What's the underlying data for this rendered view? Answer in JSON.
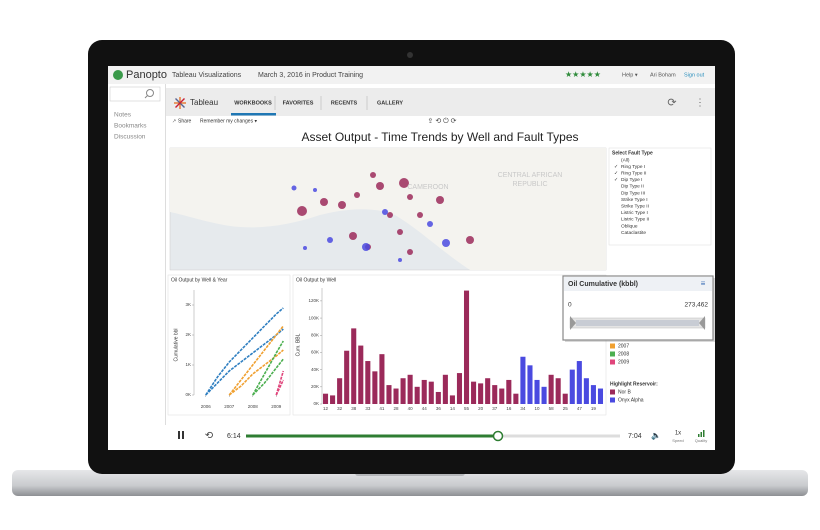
{
  "panopto": {
    "logo": "Panopto",
    "title": "Tableau Visualizations",
    "subtitle": "March 3, 2016 in Product Training",
    "rating": "★★★★★",
    "help": "Help ▾",
    "user": "Ari Boham",
    "signout": "Sign out"
  },
  "sidebar": {
    "items": [
      "Notes",
      "Bookmarks",
      "Discussion"
    ]
  },
  "tableau": {
    "logo": "Tableau",
    "tabs": [
      "WORKBOOKS",
      "FAVORITES",
      "RECENTS",
      "GALLERY"
    ],
    "toolbar": [
      "Share",
      "Remember my changes ▾"
    ]
  },
  "dashboard": {
    "title": "Asset Output - Time Trends by Well and Fault Types",
    "map": {
      "labels": [
        "CENTRAL AFRICAN",
        "REPUBLIC",
        "CAMEROON"
      ]
    },
    "filter": {
      "title": "Select Fault Type",
      "options": [
        {
          "label": "(All)",
          "checked": false
        },
        {
          "label": "Ring Type I",
          "checked": true
        },
        {
          "label": "Ring Type II",
          "checked": true
        },
        {
          "label": "Dip Type I",
          "checked": true
        },
        {
          "label": "Dip Type II",
          "checked": false
        },
        {
          "label": "Dip Type III",
          "checked": false
        },
        {
          "label": "Strike Type I",
          "checked": false
        },
        {
          "label": "Strike Type II",
          "checked": false
        },
        {
          "label": "Listric Type I",
          "checked": false
        },
        {
          "label": "Listric Type II",
          "checked": false
        },
        {
          "label": "Oblique",
          "checked": false
        },
        {
          "label": "Cataclastite",
          "checked": false
        }
      ]
    },
    "line_chart": {
      "title": "Oil Output by Well & Year",
      "y_label": "Cumulative bbl",
      "x": [
        2006,
        2006.5,
        2007,
        2007.5,
        2008,
        2008.5,
        2009,
        2009.3
      ],
      "xlim": [
        2005.5,
        2009.5
      ],
      "xticks": [
        2006,
        2007,
        2008,
        2009
      ],
      "ylim": [
        0,
        3500
      ],
      "yticks": [
        {
          "value": 0,
          "label": "0K"
        },
        {
          "value": 1000,
          "label": "1K"
        },
        {
          "value": 2000,
          "label": "2K"
        },
        {
          "value": 3000,
          "label": "3K"
        }
      ],
      "series": [
        {
          "name": "2006",
          "color": "#2f7fc1",
          "lines": [
            [
              0,
              600,
              1100,
              1500,
              1900,
              2300,
              2700,
              2900
            ],
            [
              0,
              400,
              800,
              1100,
              1400,
              1700,
              2000,
              2200
            ]
          ]
        },
        {
          "name": "2007",
          "color": "#f0a030",
          "lines": [
            [
              null,
              null,
              0,
              500,
              1000,
              1500,
              2000,
              2300
            ],
            [
              null,
              null,
              0,
              300,
              700,
              1000,
              1300,
              1500
            ]
          ]
        },
        {
          "name": "2008",
          "color": "#4caf50",
          "lines": [
            [
              null,
              null,
              null,
              null,
              0,
              700,
              1400,
              1800
            ],
            [
              null,
              null,
              null,
              null,
              0,
              400,
              900,
              1200
            ]
          ]
        },
        {
          "name": "2009",
          "color": "#e0457b",
          "lines": [
            [
              null,
              null,
              null,
              null,
              null,
              null,
              0,
              800
            ],
            [
              null,
              null,
              null,
              null,
              null,
              null,
              0,
              500
            ]
          ]
        }
      ]
    },
    "bar_chart": {
      "title": "Oil Output by Well",
      "y_label": "Cum. BBL",
      "categories": [
        "12",
        null,
        "32",
        null,
        "38",
        null,
        "33",
        null,
        "41",
        null,
        "28",
        null,
        "40",
        null,
        "44",
        null,
        "36",
        null,
        "14",
        null,
        "55",
        null,
        "20",
        null,
        "37",
        null,
        "16",
        null,
        "34",
        null,
        "10",
        null,
        "58",
        null,
        "25",
        null,
        "47",
        null,
        "19",
        null
      ],
      "ylim": [
        0,
        135000
      ],
      "yticks": [
        {
          "value": 0,
          "label": "0K"
        },
        {
          "value": 20000,
          "label": "20K"
        },
        {
          "value": 40000,
          "label": "40K"
        },
        {
          "value": 60000,
          "label": "60K"
        },
        {
          "value": 80000,
          "label": "80K"
        },
        {
          "value": 100000,
          "label": "100K"
        },
        {
          "value": 120000,
          "label": "120K"
        }
      ],
      "legend_title": "Highlight Reservoir:",
      "series": [
        {
          "name": "Nor B",
          "color": "#9b2a5a",
          "values": [
            12000,
            10000,
            30000,
            62000,
            88000,
            68000,
            50000,
            38000,
            58000,
            22000,
            18000,
            30000,
            34000,
            20000,
            28000,
            26000,
            14000,
            34000,
            10000,
            36000,
            132000,
            26000,
            24000,
            30000,
            22000,
            18000,
            28000,
            12000,
            null,
            null,
            null,
            null,
            34000,
            30000,
            12000,
            null,
            null,
            null,
            null,
            null
          ]
        },
        {
          "name": "Onyx Alpha",
          "color": "#4a4ae0",
          "values": [
            null,
            null,
            null,
            null,
            null,
            null,
            null,
            null,
            null,
            null,
            null,
            null,
            null,
            null,
            null,
            null,
            null,
            null,
            null,
            null,
            null,
            null,
            null,
            null,
            null,
            null,
            null,
            null,
            55000,
            45000,
            28000,
            20000,
            null,
            null,
            null,
            40000,
            50000,
            30000,
            22000,
            18000
          ]
        }
      ]
    },
    "slider": {
      "title": "Oil Cumulative (kbbl)",
      "min": 0,
      "max": {
        "value": 273462,
        "label": "273,462"
      }
    }
  },
  "player": {
    "current": "6:14",
    "total": "7:04",
    "speed": "1x",
    "speed_label": "Speed",
    "quality": "Quality"
  }
}
